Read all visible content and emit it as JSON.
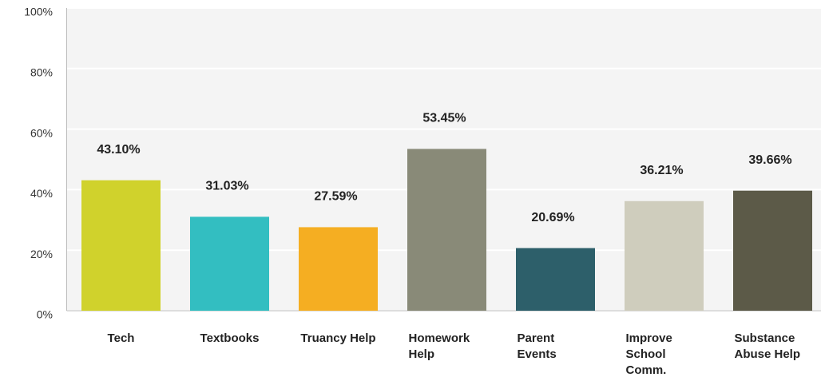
{
  "chart_data": {
    "type": "bar",
    "categories": [
      "Tech",
      "Textbooks",
      "Truancy Help",
      "Homework Help",
      "Parent Events",
      "Improve School Comm.",
      "Substance Abuse Help"
    ],
    "values": [
      43.1,
      31.03,
      27.59,
      53.45,
      20.69,
      36.21,
      39.66
    ],
    "value_labels": [
      "43.10%",
      "31.03%",
      "27.59%",
      "53.45%",
      "20.69%",
      "36.21%",
      "39.66%"
    ],
    "colors": [
      "#d0d22c",
      "#33bec1",
      "#f5ae22",
      "#898a78",
      "#2d5f6a",
      "#cfcdbd",
      "#5c5a48"
    ],
    "ylim": [
      0,
      100
    ],
    "yticks": [
      {
        "value": 0,
        "label": "0%"
      },
      {
        "value": 20,
        "label": "20%"
      },
      {
        "value": 40,
        "label": "40%"
      },
      {
        "value": 60,
        "label": "60%"
      },
      {
        "value": 80,
        "label": "80%"
      },
      {
        "value": 100,
        "label": "100%"
      }
    ],
    "grid": true
  }
}
